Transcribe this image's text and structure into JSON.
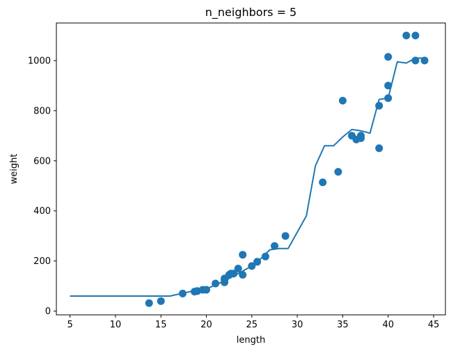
{
  "chart_data": {
    "type": "scatter",
    "title": "n_neighbors = 5",
    "xlabel": "length",
    "ylabel": "weight",
    "xlim": [
      3.5,
      46.3
    ],
    "ylim": [
      -15,
      1150
    ],
    "xticks": [
      5,
      10,
      15,
      20,
      25,
      30,
      35,
      40,
      45
    ],
    "yticks": [
      0,
      200,
      400,
      600,
      800,
      1000
    ],
    "xtick_labels": [
      "5",
      "10",
      "15",
      "20",
      "25",
      "30",
      "35",
      "40",
      "45"
    ],
    "ytick_labels": [
      "0",
      "200",
      "400",
      "600",
      "800",
      "1000"
    ],
    "grid": false,
    "colors": {
      "series": "#1f77b4",
      "axis": "#000000"
    },
    "series": [
      {
        "type": "scatter",
        "x": [
          13.7,
          15.0,
          17.4,
          18.7,
          19.0,
          19.6,
          20.0,
          21.0,
          22.0,
          22.0,
          22.0,
          22.5,
          22.7,
          23.0,
          23.5,
          24.0,
          24.0,
          25.0,
          25.6,
          26.5,
          27.5,
          28.7,
          32.8,
          34.5,
          35.0,
          36.0,
          36.5,
          37.0,
          37.0,
          39.0,
          39.0,
          40.0,
          40.0,
          40.0,
          42.0,
          43.0,
          43.0,
          44.0
        ],
        "y": [
          32,
          40,
          70,
          78,
          80,
          85,
          85,
          110,
          115,
          125,
          130,
          145,
          150,
          150,
          170,
          145,
          225,
          180,
          197,
          218,
          260,
          300,
          514,
          556,
          840,
          700,
          685,
          690,
          700,
          650,
          820,
          850,
          900,
          1015,
          1100,
          1000,
          1100,
          1000
        ]
      },
      {
        "type": "line",
        "x": [
          5,
          16,
          17.5,
          18.5,
          20,
          21,
          22,
          23,
          24,
          25,
          26,
          27,
          28,
          29,
          31,
          32,
          33,
          34,
          35,
          36,
          37,
          38,
          39,
          40,
          41,
          42,
          43,
          44
        ],
        "y": [
          60,
          60,
          72,
          80,
          88,
          105,
          120,
          140,
          160,
          180,
          210,
          245,
          250,
          250,
          380,
          580,
          660,
          660,
          695,
          725,
          720,
          710,
          845,
          850,
          995,
          990,
          1010,
          1010
        ]
      }
    ]
  }
}
